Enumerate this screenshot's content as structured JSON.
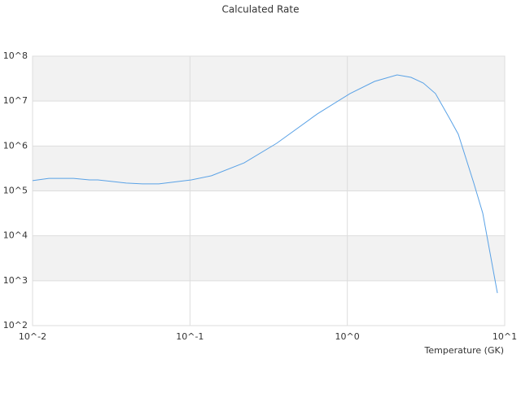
{
  "chart_data": {
    "type": "line",
    "title": "Calculated Rate",
    "x_label": "Temperature (GK)",
    "log_x": true,
    "log_y": true,
    "banded_grid": true,
    "xlim": [
      0.01,
      10
    ],
    "ylim": [
      100,
      100000000
    ],
    "xticks": [
      {
        "value": 0.01,
        "label": "10^-2"
      },
      {
        "value": 0.1,
        "label": "10^-1"
      },
      {
        "value": 1,
        "label": "10^0"
      },
      {
        "value": 10,
        "label": "10^1"
      }
    ],
    "yticks": [
      {
        "value": 100,
        "label": "10^2"
      },
      {
        "value": 1000,
        "label": "10^3"
      },
      {
        "value": 10000,
        "label": "10^4"
      },
      {
        "value": 100000,
        "label": "10^5"
      },
      {
        "value": 1000000,
        "label": "10^6"
      },
      {
        "value": 10000000,
        "label": "10^7"
      },
      {
        "value": 100000000,
        "label": "10^8"
      }
    ],
    "series": [
      {
        "color": "#5aa2e6",
        "x": [
          0.01,
          0.0127,
          0.0182,
          0.023,
          0.026,
          0.0394,
          0.0499,
          0.0634,
          0.102,
          0.137,
          0.221,
          0.356,
          0.646,
          1.04,
          1.49,
          2.07,
          2.54,
          3.04,
          3.63,
          4.45,
          5.07,
          6.36,
          7.25,
          8.98
        ],
        "values": [
          169000,
          190000,
          190000,
          176000,
          176000,
          149000,
          143000,
          143000,
          176000,
          217000,
          420000,
          1150000,
          5200000,
          14700000,
          27400000,
          38300000,
          33800000,
          25200000,
          14700000,
          4200000,
          1820000,
          149000,
          32000,
          531
        ]
      }
    ]
  }
}
